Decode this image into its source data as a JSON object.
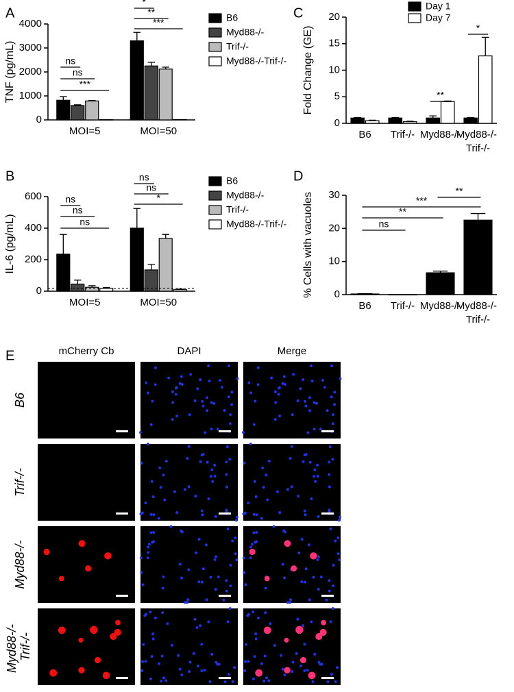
{
  "chart_data": [
    {
      "panel": "A",
      "type": "bar",
      "ylabel": "TNF (pg/mL)",
      "categories": [
        "MOI=5",
        "MOI=50"
      ],
      "series": [
        {
          "name": "B6",
          "color": "#000000",
          "values": [
            820,
            3300
          ],
          "errors": [
            150,
            350
          ]
        },
        {
          "name": "Myd88-/-",
          "color": "#444444",
          "values": [
            600,
            2250
          ],
          "errors": [
            30,
            150
          ]
        },
        {
          "name": "Trif-/-",
          "color": "#bbbbbb",
          "values": [
            790,
            2120
          ],
          "errors": [
            20,
            80
          ]
        },
        {
          "name": "Myd88-/-Trif-/-",
          "color": "#ffffff",
          "values": [
            10,
            15
          ],
          "errors": [
            0,
            0
          ]
        }
      ],
      "ylim": [
        0,
        4000
      ],
      "yticks": [
        0,
        1000,
        2000,
        3000,
        4000
      ],
      "legend": "right",
      "annotations": [
        "ns",
        "ns",
        "***",
        "*",
        "**",
        "***"
      ]
    },
    {
      "panel": "C",
      "type": "bar",
      "ylabel": "Fold Change (GE)",
      "categories": [
        "B6",
        "Trif-/-",
        "Myd88-/-",
        "Myd88-/- Trif-/-"
      ],
      "series": [
        {
          "name": "Day 1",
          "color": "#000000",
          "values": [
            1,
            1,
            1,
            1
          ],
          "errors": [
            0.1,
            0.1,
            0.4,
            0.1
          ]
        },
        {
          "name": "Day 7",
          "color": "#ffffff",
          "values": [
            0.5,
            0.3,
            4.1,
            12.7
          ],
          "errors": [
            0.1,
            0.1,
            0.1,
            3.5
          ]
        }
      ],
      "ylim": [
        0,
        20
      ],
      "yticks": [
        0,
        5,
        10,
        15,
        20
      ],
      "legend": "top",
      "annotations": [
        "**",
        "*"
      ]
    },
    {
      "panel": "B",
      "type": "bar",
      "ylabel": "IL-6 (pg/mL)",
      "categories": [
        "MOI=5",
        "MOI=50"
      ],
      "series": [
        {
          "name": "B6",
          "color": "#000000",
          "values": [
            235,
            400
          ],
          "errors": [
            125,
            125
          ]
        },
        {
          "name": "Myd88-/-",
          "color": "#444444",
          "values": [
            45,
            135
          ],
          "errors": [
            25,
            35
          ]
        },
        {
          "name": "Trif-/-",
          "color": "#bbbbbb",
          "values": [
            25,
            335
          ],
          "errors": [
            10,
            25
          ]
        },
        {
          "name": "Myd88-/-Trif-/-",
          "color": "#ffffff",
          "values": [
            18,
            10
          ],
          "errors": [
            5,
            3
          ]
        }
      ],
      "ylim": [
        0,
        600
      ],
      "yticks": [
        0,
        200,
        400,
        600
      ],
      "legend": "right",
      "annotations": [
        "ns",
        "ns",
        "ns",
        "ns",
        "ns",
        "*"
      ]
    },
    {
      "panel": "D",
      "type": "bar",
      "ylabel": "% Cells with vacuoles",
      "categories": [
        "B6",
        "Trif-/-",
        "Myd88-/-",
        "Myd88-/- Trif-/-"
      ],
      "series": [
        {
          "name": "Vacuoles",
          "color": "#000000",
          "values": [
            0.2,
            0,
            6.6,
            22.5
          ],
          "errors": [
            0.1,
            0,
            0.5,
            2
          ]
        }
      ],
      "ylim": [
        0,
        30
      ],
      "yticks": [
        0,
        10,
        20,
        30
      ],
      "legend": "none",
      "annotations": [
        "**",
        "***",
        "**",
        "ns"
      ]
    }
  ],
  "figure_e": {
    "panel": "E",
    "columns": [
      "mCherry Cb",
      "DAPI",
      "Merge"
    ],
    "rows": [
      "B6",
      "Trif-/-",
      "Myd88-/-",
      "Myd88-/- Trif-/-"
    ]
  }
}
